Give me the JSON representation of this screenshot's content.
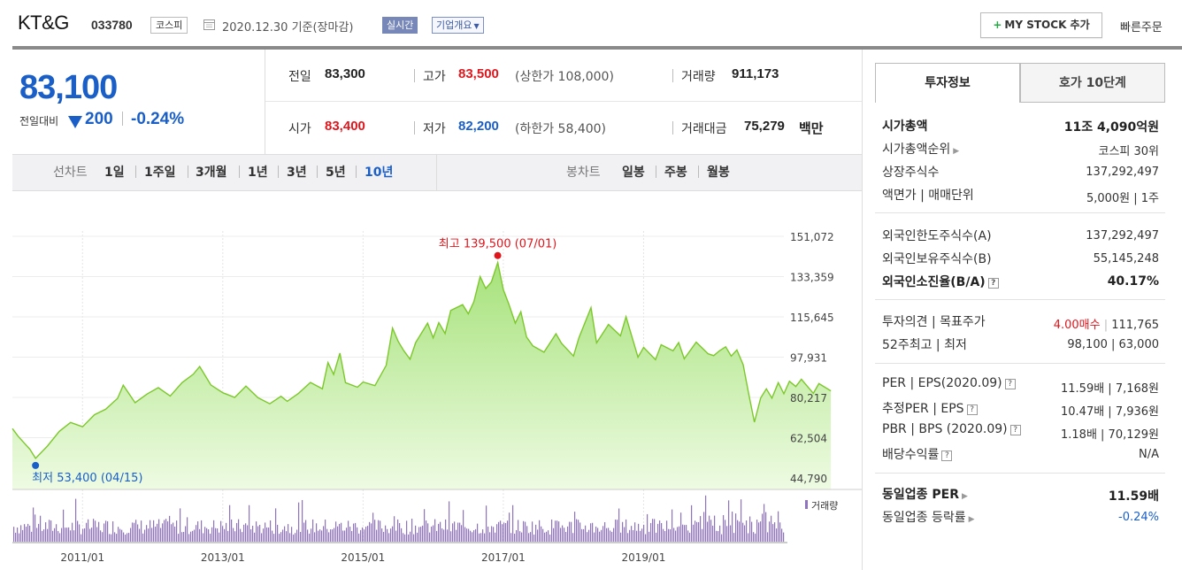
{
  "header": {
    "company_name": "KT&G",
    "stock_code": "033780",
    "market": "코스피",
    "date_text": "2020.12.30 기준(장마감)",
    "realtime": "실시간",
    "company_overview": "기업개요",
    "mystock_button": "MY STOCK 추가",
    "quick_order": "빠른주문"
  },
  "price": {
    "current": "83,100",
    "prev_compare_label": "전일대비",
    "change": "200",
    "change_pct": "-0.24%"
  },
  "stats": {
    "prev_close_label": "전일",
    "prev_close": "83,300",
    "high_label": "고가",
    "high": "83,500",
    "upper_limit": "(상한가 108,000)",
    "volume_label": "거래량",
    "volume": "911,173",
    "open_label": "시가",
    "open": "83,400",
    "low_label": "저가",
    "low": "82,200",
    "lower_limit": "(하한가 58,400)",
    "amount_label": "거래대금",
    "amount": "75,279",
    "amount_unit": "백만"
  },
  "period_bar": {
    "line_chart_label": "선차트",
    "line_periods": [
      "1일",
      "1주일",
      "3개월",
      "1년",
      "3년",
      "5년",
      "10년"
    ],
    "selected_period": "10년",
    "candle_chart_label": "봉차트",
    "candle_periods": [
      "일봉",
      "주봉",
      "월봉"
    ]
  },
  "chart_data": {
    "type": "area",
    "x_ticks": [
      "2011/01",
      "2013/01",
      "2015/01",
      "2017/01",
      "2019/01"
    ],
    "y_ticks": [
      151072,
      133359,
      115645,
      97931,
      80217,
      62504,
      44790
    ],
    "ylim": [
      44790,
      151072
    ],
    "max_annotation": "최고 139,500 (07/01)",
    "min_annotation": "최저 53,400 (04/15)",
    "volume_label": "거래량",
    "line_color": "#7cc82a",
    "volume_color": "#8f72c0",
    "points": [
      [
        2010.0,
        66500
      ],
      [
        2010.08,
        63200
      ],
      [
        2010.17,
        60100
      ],
      [
        2010.25,
        57400
      ],
      [
        2010.33,
        53400
      ],
      [
        2010.5,
        58800
      ],
      [
        2010.67,
        65300
      ],
      [
        2010.83,
        69200
      ],
      [
        2011.0,
        67300
      ],
      [
        2011.17,
        72600
      ],
      [
        2011.33,
        75000
      ],
      [
        2011.5,
        79800
      ],
      [
        2011.58,
        85600
      ],
      [
        2011.75,
        77900
      ],
      [
        2011.92,
        81700
      ],
      [
        2012.08,
        84500
      ],
      [
        2012.25,
        80800
      ],
      [
        2012.42,
        86700
      ],
      [
        2012.58,
        90400
      ],
      [
        2012.67,
        93800
      ],
      [
        2012.83,
        85700
      ],
      [
        2013.0,
        82300
      ],
      [
        2013.17,
        80200
      ],
      [
        2013.33,
        85200
      ],
      [
        2013.5,
        80100
      ],
      [
        2013.67,
        77400
      ],
      [
        2013.83,
        80700
      ],
      [
        2013.92,
        78500
      ],
      [
        2014.08,
        82000
      ],
      [
        2014.25,
        86800
      ],
      [
        2014.42,
        84000
      ],
      [
        2014.5,
        95500
      ],
      [
        2014.58,
        90300
      ],
      [
        2014.67,
        99700
      ],
      [
        2014.75,
        86700
      ],
      [
        2014.92,
        84700
      ],
      [
        2015.0,
        87000
      ],
      [
        2015.17,
        85400
      ],
      [
        2015.33,
        94300
      ],
      [
        2015.42,
        110700
      ],
      [
        2015.5,
        104900
      ],
      [
        2015.58,
        100800
      ],
      [
        2015.67,
        97000
      ],
      [
        2015.75,
        104300
      ],
      [
        2015.92,
        112900
      ],
      [
        2016.0,
        106400
      ],
      [
        2016.08,
        113100
      ],
      [
        2016.17,
        108300
      ],
      [
        2016.25,
        118500
      ],
      [
        2016.42,
        121000
      ],
      [
        2016.5,
        117000
      ],
      [
        2016.58,
        122300
      ],
      [
        2016.67,
        133300
      ],
      [
        2016.75,
        128100
      ],
      [
        2016.83,
        131000
      ],
      [
        2016.92,
        139500
      ],
      [
        2017.0,
        127600
      ],
      [
        2017.08,
        121100
      ],
      [
        2017.17,
        112900
      ],
      [
        2017.25,
        117900
      ],
      [
        2017.33,
        106800
      ],
      [
        2017.42,
        102900
      ],
      [
        2017.58,
        100100
      ],
      [
        2017.75,
        108200
      ],
      [
        2017.83,
        104000
      ],
      [
        2018.0,
        98400
      ],
      [
        2018.08,
        106600
      ],
      [
        2018.25,
        119700
      ],
      [
        2018.33,
        104200
      ],
      [
        2018.5,
        112300
      ],
      [
        2018.67,
        107300
      ],
      [
        2018.75,
        115700
      ],
      [
        2018.92,
        97900
      ],
      [
        2019.0,
        102200
      ],
      [
        2019.17,
        96800
      ],
      [
        2019.25,
        103400
      ],
      [
        2019.42,
        100700
      ],
      [
        2019.5,
        104300
      ],
      [
        2019.58,
        97200
      ],
      [
        2019.75,
        104500
      ],
      [
        2019.92,
        99400
      ],
      [
        2020.0,
        98600
      ],
      [
        2020.08,
        100700
      ],
      [
        2020.17,
        102500
      ],
      [
        2020.25,
        98400
      ],
      [
        2020.33,
        101100
      ],
      [
        2020.42,
        94600
      ],
      [
        2020.5,
        81500
      ],
      [
        2020.58,
        69300
      ],
      [
        2020.67,
        80000
      ],
      [
        2020.75,
        84000
      ],
      [
        2020.83,
        79900
      ],
      [
        2020.92,
        86700
      ],
      [
        2021.0,
        81800
      ],
      [
        2021.08,
        87300
      ],
      [
        2021.17,
        85000
      ],
      [
        2021.25,
        88200
      ],
      [
        2021.42,
        82000
      ],
      [
        2021.5,
        86300
      ],
      [
        2021.67,
        83100
      ]
    ]
  },
  "invest_panel": {
    "tabs": [
      "투자정보",
      "호가 10단계"
    ],
    "market_cap_label": "시가총액",
    "market_cap": "11조 4,090억원",
    "market_cap_rank_label": "시가총액순위",
    "market_cap_rank": "코스피 30위",
    "listed_shares_label": "상장주식수",
    "listed_shares": "137,292,497",
    "par_value_label": "액면가 | 매매단위",
    "par_value": "5,000원 | 1주",
    "foreign_limit_label": "외국인한도주식수(A)",
    "foreign_limit": "137,292,497",
    "foreign_holding_label": "외국인보유주식수(B)",
    "foreign_holding": "55,145,248",
    "foreign_ratio_label": "외국인소진율(B/A)",
    "foreign_ratio": "40.17%",
    "opinion_label": "투자의견 | 목표주가",
    "opinion": "4.00매수",
    "target_price": "111,765",
    "week52_label": "52주최고 | 최저",
    "week52": "98,100 | 63,000",
    "per_label": "PER | EPS(2020.09)",
    "per": "11.59배 | 7,168원",
    "est_per_label": "추정PER | EPS",
    "est_per": "10.47배 | 7,936원",
    "pbr_label": "PBR | BPS (2020.09)",
    "pbr": "1.18배 | 70,129원",
    "dividend_label": "배당수익률",
    "dividend": "N/A",
    "sector_per_label": "동일업종 PER",
    "sector_per": "11.59배",
    "sector_change_label": "동일업종 등락률",
    "sector_change": "-0.24%"
  }
}
